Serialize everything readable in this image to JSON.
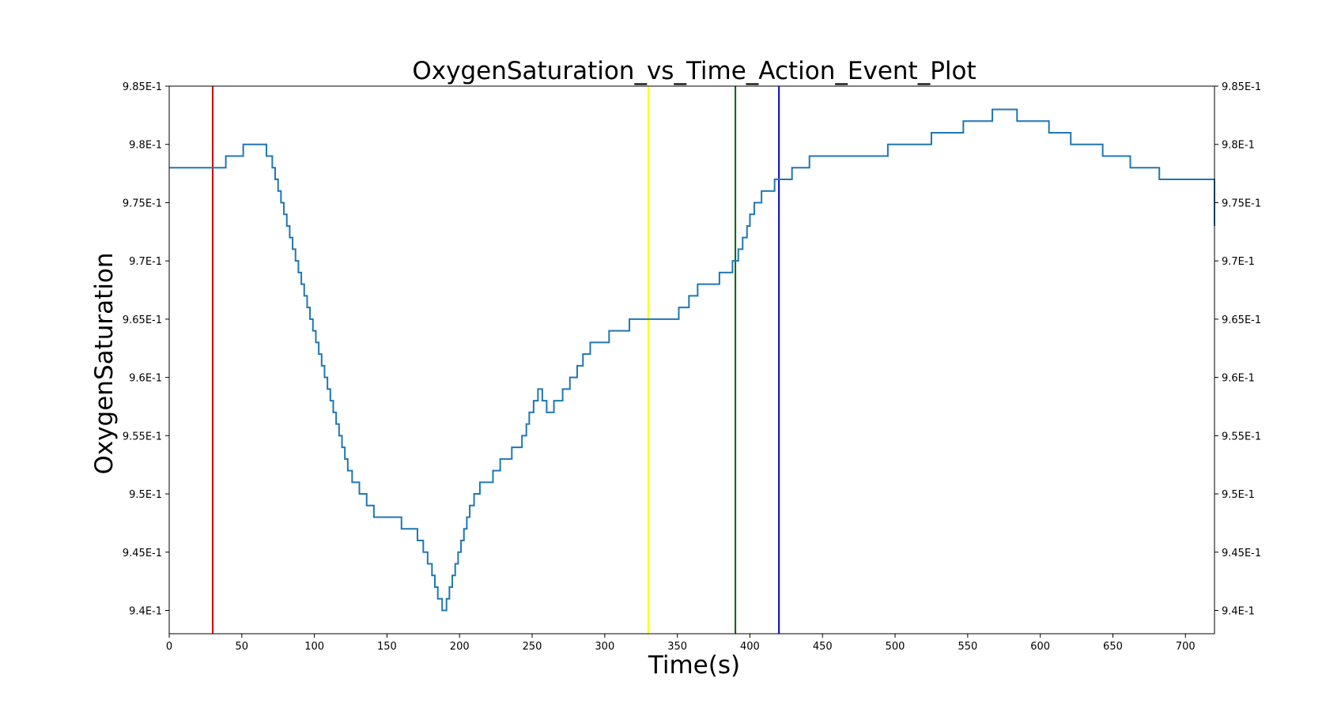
{
  "chart_data": {
    "type": "line",
    "title": "OxygenSaturation_vs_Time_Action_Event_Plot",
    "xlabel": "Time(s)",
    "ylabel": "OxygenSaturation",
    "xlim": [
      0,
      720
    ],
    "ylim": [
      0.938,
      0.985
    ],
    "x_ticks": [
      0,
      50,
      100,
      150,
      200,
      250,
      300,
      350,
      400,
      450,
      500,
      550,
      600,
      650,
      700
    ],
    "y_ticks": [
      0.94,
      0.945,
      0.95,
      0.955,
      0.96,
      0.965,
      0.97,
      0.975,
      0.98,
      0.985
    ],
    "y_tick_labels": [
      "9.4E-1",
      "9.45E-1",
      "9.5E-1",
      "9.55E-1",
      "9.6E-1",
      "9.65E-1",
      "9.7E-1",
      "9.75E-1",
      "9.8E-1",
      "9.85E-1"
    ],
    "right_axis_ticks": true,
    "legend": "none",
    "grid": false,
    "series": [
      {
        "color": "#1f77b4",
        "step": "post",
        "x": [
          0,
          39,
          51,
          67,
          71,
          73,
          75,
          77,
          79,
          81,
          83,
          85,
          87,
          89,
          91,
          93,
          95,
          97,
          99,
          101,
          103,
          105,
          107,
          109,
          111,
          113,
          115,
          117,
          119,
          121,
          123,
          126,
          131,
          136,
          141,
          160,
          171,
          175,
          178,
          181,
          183,
          185,
          188,
          191,
          193,
          195,
          197,
          199,
          201,
          203,
          205,
          207,
          210,
          214,
          223,
          228,
          236,
          243,
          246,
          248,
          251,
          254,
          257,
          260,
          265,
          271,
          276,
          281,
          285,
          290,
          303,
          317,
          351,
          358,
          364,
          379,
          388,
          392,
          395,
          398,
          400,
          403,
          408,
          417,
          429,
          441,
          495,
          525,
          547,
          567,
          584,
          606,
          621,
          643,
          662,
          682,
          720
        ],
        "y": [
          0.978,
          0.979,
          0.98,
          0.979,
          0.978,
          0.977,
          0.976,
          0.975,
          0.974,
          0.973,
          0.972,
          0.971,
          0.97,
          0.969,
          0.968,
          0.967,
          0.966,
          0.965,
          0.964,
          0.963,
          0.962,
          0.961,
          0.96,
          0.959,
          0.958,
          0.957,
          0.956,
          0.955,
          0.954,
          0.953,
          0.952,
          0.951,
          0.95,
          0.949,
          0.948,
          0.947,
          0.946,
          0.945,
          0.944,
          0.943,
          0.942,
          0.941,
          0.94,
          0.941,
          0.942,
          0.943,
          0.944,
          0.945,
          0.946,
          0.947,
          0.948,
          0.949,
          0.95,
          0.951,
          0.952,
          0.953,
          0.954,
          0.955,
          0.956,
          0.957,
          0.958,
          0.959,
          0.958,
          0.957,
          0.958,
          0.959,
          0.96,
          0.961,
          0.962,
          0.963,
          0.964,
          0.965,
          0.966,
          0.967,
          0.968,
          0.969,
          0.97,
          0.971,
          0.972,
          0.973,
          0.974,
          0.975,
          0.976,
          0.977,
          0.978,
          0.979,
          0.98,
          0.981,
          0.982,
          0.983,
          0.982,
          0.981,
          0.98,
          0.979,
          0.978,
          0.977,
          0.973
        ]
      }
    ],
    "event_lines": [
      {
        "x": 30,
        "color": "#cc0000"
      },
      {
        "x": 330,
        "color": "#ffff00"
      },
      {
        "x": 390,
        "color": "#006400"
      },
      {
        "x": 420,
        "color": "#0000cc"
      }
    ]
  }
}
